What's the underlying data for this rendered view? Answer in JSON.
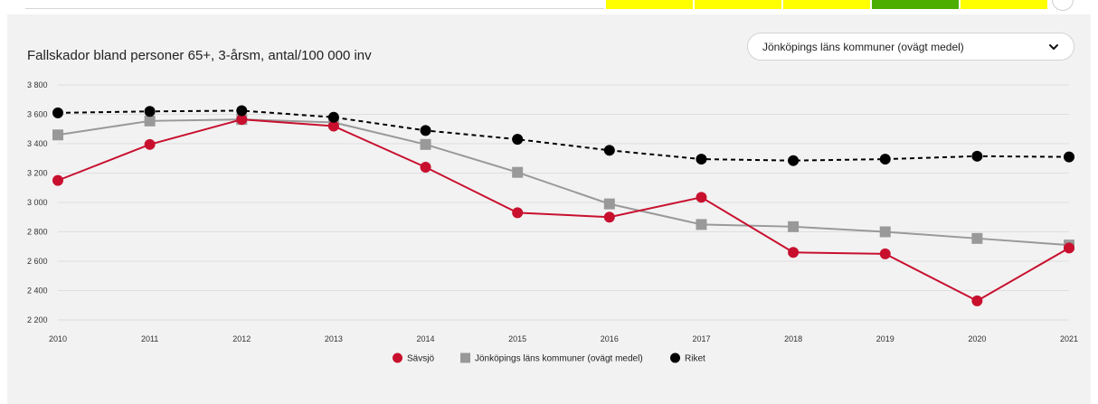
{
  "header": {
    "status_colors": [
      "#ffff00",
      "#ffff00",
      "#ffff00",
      "#4caf00",
      "#ffff00"
    ]
  },
  "chart_data": {
    "type": "line",
    "title": "Fallskador bland personer 65+, 3-årsm, antal/100 000 inv",
    "x": [
      "2010",
      "2011",
      "2012",
      "2013",
      "2014",
      "2015",
      "2016",
      "2017",
      "2018",
      "2019",
      "2020",
      "2021"
    ],
    "y_ticks": [
      "3 800",
      "3 600",
      "3 400",
      "3 200",
      "3 000",
      "2 800",
      "2 600",
      "2 400",
      "2 200"
    ],
    "ylim": [
      2200,
      3800
    ],
    "grid": true,
    "legend_position": "bottom",
    "series": [
      {
        "name": "Sävsjö",
        "color": "#c8102e",
        "marker": "circle",
        "dashed": false,
        "values": [
          3150,
          3395,
          3565,
          3520,
          3240,
          2930,
          2900,
          3035,
          2660,
          2650,
          2330,
          2690
        ]
      },
      {
        "name": "Jönköpings läns kommuner (ovägt medel)",
        "color": "#999999",
        "marker": "square",
        "dashed": false,
        "values": [
          3460,
          3555,
          3565,
          3545,
          3395,
          3205,
          2990,
          2850,
          2835,
          2800,
          2755,
          2710
        ]
      },
      {
        "name": "Riket",
        "color": "#000000",
        "marker": "circle",
        "dashed": true,
        "values": [
          3610,
          3620,
          3625,
          3580,
          3490,
          3430,
          3355,
          3295,
          3285,
          3295,
          3315,
          3310
        ]
      }
    ]
  },
  "dropdown": {
    "selected": "Jönköpings läns kommuner (ovägt medel)"
  }
}
